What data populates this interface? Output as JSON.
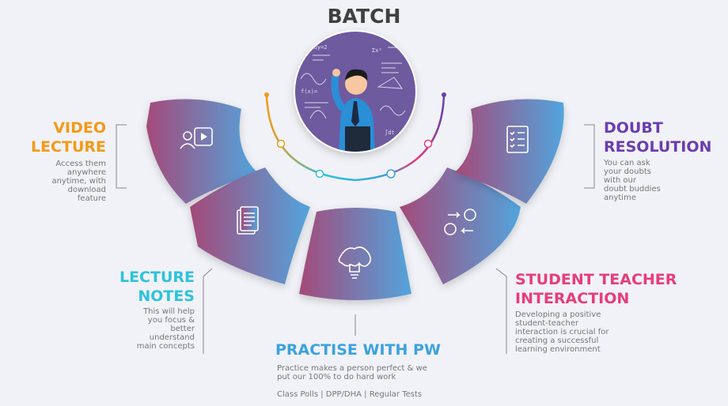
{
  "title": "BATCH",
  "colors": {
    "gradient_start": "#a44a7a",
    "gradient_end": "#52a4dd",
    "video": "#f29a17",
    "notes": "#2ec2dc",
    "practise": "#3aa2df",
    "interaction": "#e83d78",
    "doubt": "#6a3dae"
  },
  "video_lecture": {
    "icon": "video-lecture-icon",
    "title_lines": [
      "VIDEO",
      "LECTURE"
    ],
    "desc_lines": [
      "Access them",
      "anywhere",
      "anytime, with",
      "download",
      "feature"
    ]
  },
  "lecture_notes": {
    "icon": "notes-document-icon",
    "title_lines": [
      "LECTURE",
      "NOTES"
    ],
    "desc_lines": [
      "This will help",
      "you focus &",
      "better",
      "understand",
      "main concepts"
    ]
  },
  "practise": {
    "icon": "brain-lightbulb-icon",
    "title": "PRACTISE WITH PW",
    "desc_lines": [
      "Practice makes a person perfect & we",
      "put our 100% to do hard work"
    ],
    "footer": "Class Polls | DPP/DHA | Regular Tests"
  },
  "interaction": {
    "icon": "user-exchange-icon",
    "title_lines": [
      "STUDENT TEACHER",
      "INTERACTION"
    ],
    "desc_lines": [
      "Developing a positive",
      "student-teacher",
      "interaction is crucial for",
      "creating a successful",
      "learning environment"
    ]
  },
  "doubt": {
    "icon": "checklist-icon",
    "title_lines": [
      "DOUBT",
      "RESOLUTION"
    ],
    "desc_lines": [
      "You can ask",
      "your doubts",
      "with our",
      "doubt buddies",
      "anytime"
    ]
  },
  "center_image": "teacher-at-board-illustration"
}
